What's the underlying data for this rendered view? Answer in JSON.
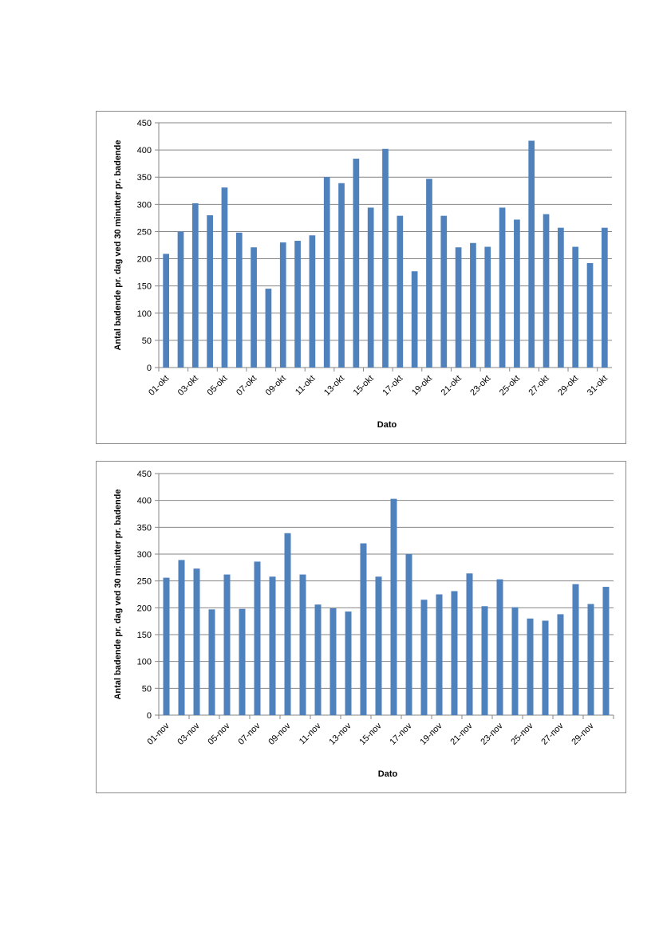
{
  "colors": {
    "bar": "#4f81bd",
    "grid": "#868686",
    "axis": "#868686",
    "frame": "#8c8c8c"
  },
  "chart_data": [
    {
      "type": "bar",
      "title": "",
      "xlabel": "Dato",
      "ylabel": "Antal badende pr. dag ved 30 minutter pr. badende",
      "ylim": [
        0,
        450
      ],
      "yticks": [
        "0",
        "50",
        "100",
        "150",
        "200",
        "250",
        "300",
        "350",
        "400",
        "450"
      ],
      "grid": true,
      "legend": "none",
      "categories": [
        "01-okt",
        "02-okt",
        "03-okt",
        "04-okt",
        "05-okt",
        "06-okt",
        "07-okt",
        "08-okt",
        "09-okt",
        "10-okt",
        "11-okt",
        "12-okt",
        "13-okt",
        "14-okt",
        "15-okt",
        "16-okt",
        "17-okt",
        "18-okt",
        "19-okt",
        "20-okt",
        "21-okt",
        "22-okt",
        "23-okt",
        "24-okt",
        "25-okt",
        "26-okt",
        "27-okt",
        "28-okt",
        "29-okt",
        "30-okt",
        "31-okt"
      ],
      "xtick_labels": [
        "01-okt",
        "03-okt",
        "05-okt",
        "07-okt",
        "09-okt",
        "11-okt",
        "13-okt",
        "15-okt",
        "17-okt",
        "19-okt",
        "21-okt",
        "23-okt",
        "25-okt",
        "27-okt",
        "29-okt",
        "31-okt"
      ],
      "values": [
        209,
        250,
        302,
        280,
        331,
        248,
        221,
        145,
        230,
        233,
        243,
        350,
        339,
        384,
        294,
        402,
        279,
        177,
        347,
        279,
        221,
        229,
        222,
        294,
        272,
        417,
        282,
        257,
        222,
        192,
        257
      ]
    },
    {
      "type": "bar",
      "title": "",
      "xlabel": "Dato",
      "ylabel": "Antal badende pr. dag ved 30 minutter pr. badende",
      "ylim": [
        0,
        450
      ],
      "yticks": [
        "0",
        "50",
        "100",
        "150",
        "200",
        "250",
        "300",
        "350",
        "400",
        "450"
      ],
      "grid": true,
      "legend": "none",
      "categories": [
        "01-nov",
        "02-nov",
        "03-nov",
        "04-nov",
        "05-nov",
        "06-nov",
        "07-nov",
        "08-nov",
        "09-nov",
        "10-nov",
        "11-nov",
        "12-nov",
        "13-nov",
        "14-nov",
        "15-nov",
        "16-nov",
        "17-nov",
        "18-nov",
        "19-nov",
        "20-nov",
        "21-nov",
        "22-nov",
        "23-nov",
        "24-nov",
        "25-nov",
        "26-nov",
        "27-nov",
        "28-nov",
        "29-nov",
        "30-nov"
      ],
      "xtick_labels": [
        "01-nov",
        "03-nov",
        "05-nov",
        "07-nov",
        "09-nov",
        "11-nov",
        "13-nov",
        "15-nov",
        "17-nov",
        "19-nov",
        "21-nov",
        "23-nov",
        "25-nov",
        "27-nov",
        "29-nov"
      ],
      "values": [
        256,
        289,
        273,
        197,
        262,
        198,
        286,
        258,
        339,
        262,
        206,
        199,
        193,
        320,
        258,
        403,
        300,
        215,
        225,
        231,
        264,
        203,
        253,
        201,
        180,
        176,
        188,
        244,
        207,
        239
      ]
    }
  ]
}
